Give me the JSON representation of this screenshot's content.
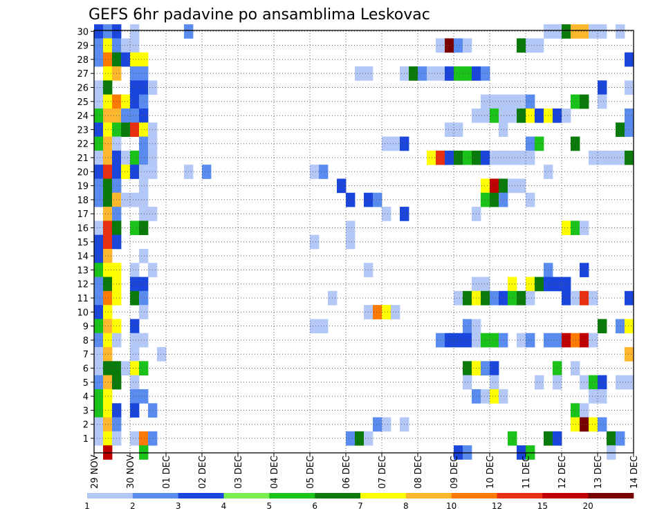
{
  "chart_data": {
    "type": "heatmap",
    "title": "GEFS 6hr padavine po ansamblima Leskovac",
    "xlabel": "",
    "ylabel": "",
    "x_ticks": [
      "29 NOV",
      "30 NOV",
      "01 DEC",
      "02 DEC",
      "03 DEC",
      "04 DEC",
      "05 DEC",
      "06 DEC",
      "07 DEC",
      "08 DEC",
      "09 DEC",
      "10 DEC",
      "11 DEC",
      "12 DEC",
      "13 DEC",
      "14 DEC"
    ],
    "y_ticks": [
      "1",
      "2",
      "3",
      "4",
      "5",
      "6",
      "7",
      "8",
      "9",
      "10",
      "11",
      "12",
      "13",
      "14",
      "15",
      "16",
      "17",
      "18",
      "19",
      "20",
      "21",
      "22",
      "23",
      "24",
      "25",
      "26",
      "27",
      "28",
      "29",
      "30"
    ],
    "x_range_days": [
      0,
      15
    ],
    "steps_per_day": 4,
    "members": 30,
    "grid": "dotted",
    "legend": {
      "placement": "bottom",
      "labels": [
        "1",
        "2",
        "3",
        "4",
        "5",
        "6",
        "7",
        "8",
        "10",
        "12",
        "15",
        "20"
      ],
      "colors": [
        "#b4c8f8",
        "#5a8cf0",
        "#1a46dc",
        "#78ee50",
        "#1ac21a",
        "#0a7a0a",
        "#ffff00",
        "#ffb82e",
        "#ff7a00",
        "#e83010",
        "#c00000",
        "#780000"
      ]
    },
    "fill_values": [
      1.5,
      3,
      3.5,
      4.5,
      5.5,
      6.5,
      7.5,
      9,
      11,
      13.5,
      17.5,
      25
    ],
    "cells": [
      [
        30,
        0,
        "3"
      ],
      [
        30,
        1,
        "2"
      ],
      [
        30,
        2,
        "3"
      ],
      [
        30,
        4,
        "1"
      ],
      [
        30,
        10,
        "2"
      ],
      [
        30,
        50,
        "1"
      ],
      [
        30,
        51,
        "1"
      ],
      [
        30,
        52,
        "6"
      ],
      [
        30,
        53,
        "9"
      ],
      [
        30,
        54,
        "9"
      ],
      [
        30,
        55,
        "1"
      ],
      [
        30,
        56,
        "1"
      ],
      [
        30,
        58,
        "1"
      ],
      [
        29,
        0,
        "2"
      ],
      [
        29,
        1,
        "7"
      ],
      [
        29,
        2,
        "2"
      ],
      [
        29,
        3,
        "1"
      ],
      [
        29,
        4,
        "1"
      ],
      [
        29,
        38,
        "1"
      ],
      [
        29,
        39,
        "25"
      ],
      [
        29,
        40,
        "2"
      ],
      [
        29,
        41,
        "1"
      ],
      [
        29,
        47,
        "6"
      ],
      [
        29,
        48,
        "1"
      ],
      [
        29,
        49,
        "1"
      ],
      [
        28,
        0,
        "2"
      ],
      [
        28,
        1,
        "11"
      ],
      [
        28,
        2,
        "6"
      ],
      [
        28,
        3,
        "3"
      ],
      [
        28,
        4,
        "7"
      ],
      [
        28,
        5,
        "7"
      ],
      [
        28,
        59,
        "3"
      ],
      [
        27,
        1,
        "7"
      ],
      [
        27,
        2,
        "9"
      ],
      [
        27,
        4,
        "2"
      ],
      [
        27,
        5,
        "2"
      ],
      [
        27,
        29,
        "1"
      ],
      [
        27,
        30,
        "1"
      ],
      [
        27,
        34,
        "1"
      ],
      [
        27,
        35,
        "6"
      ],
      [
        27,
        36,
        "2"
      ],
      [
        27,
        37,
        "1"
      ],
      [
        27,
        38,
        "1"
      ],
      [
        27,
        39,
        "3"
      ],
      [
        27,
        40,
        "5"
      ],
      [
        27,
        41,
        "5"
      ],
      [
        27,
        42,
        "3"
      ],
      [
        27,
        43,
        "2"
      ],
      [
        26,
        0,
        "1"
      ],
      [
        26,
        1,
        "6"
      ],
      [
        26,
        4,
        "3"
      ],
      [
        26,
        5,
        "3"
      ],
      [
        26,
        6,
        "1"
      ],
      [
        26,
        56,
        "3"
      ],
      [
        26,
        59,
        "1"
      ],
      [
        25,
        0,
        "1"
      ],
      [
        25,
        1,
        "7"
      ],
      [
        25,
        2,
        "11"
      ],
      [
        25,
        3,
        "7"
      ],
      [
        25,
        4,
        "3"
      ],
      [
        25,
        5,
        "2"
      ],
      [
        25,
        43,
        "1"
      ],
      [
        25,
        44,
        "1"
      ],
      [
        25,
        45,
        "1"
      ],
      [
        25,
        46,
        "1"
      ],
      [
        25,
        47,
        "1"
      ],
      [
        25,
        48,
        "2"
      ],
      [
        25,
        53,
        "5"
      ],
      [
        25,
        54,
        "6"
      ],
      [
        25,
        56,
        "1"
      ],
      [
        24,
        0,
        "5"
      ],
      [
        24,
        1,
        "9"
      ],
      [
        24,
        2,
        "9"
      ],
      [
        24,
        3,
        "2"
      ],
      [
        24,
        4,
        "2"
      ],
      [
        24,
        5,
        "3"
      ],
      [
        24,
        42,
        "1"
      ],
      [
        24,
        43,
        "1"
      ],
      [
        24,
        44,
        "5"
      ],
      [
        24,
        45,
        "1"
      ],
      [
        24,
        46,
        "1"
      ],
      [
        24,
        47,
        "6"
      ],
      [
        24,
        48,
        "7"
      ],
      [
        24,
        49,
        "3"
      ],
      [
        24,
        50,
        "7"
      ],
      [
        24,
        51,
        "3"
      ],
      [
        24,
        52,
        "1"
      ],
      [
        24,
        59,
        "2"
      ],
      [
        23,
        0,
        "3"
      ],
      [
        23,
        1,
        "7"
      ],
      [
        23,
        2,
        "5"
      ],
      [
        23,
        3,
        "6"
      ],
      [
        23,
        4,
        "13"
      ],
      [
        23,
        5,
        "7"
      ],
      [
        23,
        6,
        "1"
      ],
      [
        23,
        39,
        "1"
      ],
      [
        23,
        40,
        "1"
      ],
      [
        23,
        45,
        "1"
      ],
      [
        23,
        58,
        "6"
      ],
      [
        23,
        59,
        "2"
      ],
      [
        22,
        0,
        "5"
      ],
      [
        22,
        1,
        "9"
      ],
      [
        22,
        2,
        "1"
      ],
      [
        22,
        5,
        "2"
      ],
      [
        22,
        6,
        "1"
      ],
      [
        22,
        32,
        "1"
      ],
      [
        22,
        33,
        "1"
      ],
      [
        22,
        34,
        "3"
      ],
      [
        22,
        48,
        "2"
      ],
      [
        22,
        49,
        "5"
      ],
      [
        22,
        53,
        "6"
      ],
      [
        21,
        0,
        "1"
      ],
      [
        21,
        1,
        "9"
      ],
      [
        21,
        2,
        "3"
      ],
      [
        21,
        3,
        "1"
      ],
      [
        21,
        4,
        "5"
      ],
      [
        21,
        5,
        "2"
      ],
      [
        21,
        6,
        "1"
      ],
      [
        21,
        37,
        "7"
      ],
      [
        21,
        38,
        "13"
      ],
      [
        21,
        39,
        "3"
      ],
      [
        21,
        40,
        "6"
      ],
      [
        21,
        41,
        "5"
      ],
      [
        21,
        42,
        "6"
      ],
      [
        21,
        43,
        "3"
      ],
      [
        21,
        44,
        "1"
      ],
      [
        21,
        45,
        "1"
      ],
      [
        21,
        46,
        "1"
      ],
      [
        21,
        47,
        "1"
      ],
      [
        21,
        48,
        "1"
      ],
      [
        21,
        55,
        "1"
      ],
      [
        21,
        56,
        "1"
      ],
      [
        21,
        57,
        "1"
      ],
      [
        21,
        58,
        "1"
      ],
      [
        21,
        59,
        "6"
      ],
      [
        20,
        0,
        "3"
      ],
      [
        20,
        1,
        "13"
      ],
      [
        20,
        2,
        "3"
      ],
      [
        20,
        3,
        "7"
      ],
      [
        20,
        4,
        "3"
      ],
      [
        20,
        5,
        "1"
      ],
      [
        20,
        6,
        "1"
      ],
      [
        20,
        10,
        "1"
      ],
      [
        20,
        12,
        "2"
      ],
      [
        20,
        24,
        "1"
      ],
      [
        20,
        25,
        "2"
      ],
      [
        20,
        50,
        "1"
      ],
      [
        19,
        0,
        "2"
      ],
      [
        19,
        1,
        "6"
      ],
      [
        19,
        2,
        "2"
      ],
      [
        19,
        5,
        "1"
      ],
      [
        19,
        27,
        "3"
      ],
      [
        19,
        43,
        "7"
      ],
      [
        19,
        44,
        "17"
      ],
      [
        19,
        45,
        "6"
      ],
      [
        19,
        46,
        "1"
      ],
      [
        19,
        47,
        "1"
      ],
      [
        18,
        0,
        "2"
      ],
      [
        18,
        1,
        "6"
      ],
      [
        18,
        2,
        "9"
      ],
      [
        18,
        3,
        "1"
      ],
      [
        18,
        4,
        "1"
      ],
      [
        18,
        5,
        "1"
      ],
      [
        18,
        28,
        "3"
      ],
      [
        18,
        30,
        "3"
      ],
      [
        18,
        31,
        "2"
      ],
      [
        18,
        43,
        "5"
      ],
      [
        18,
        44,
        "6"
      ],
      [
        18,
        45,
        "2"
      ],
      [
        18,
        48,
        "1"
      ],
      [
        17,
        1,
        "9"
      ],
      [
        17,
        2,
        "2"
      ],
      [
        17,
        5,
        "1"
      ],
      [
        17,
        6,
        "1"
      ],
      [
        17,
        32,
        "1"
      ],
      [
        17,
        34,
        "3"
      ],
      [
        17,
        42,
        "1"
      ],
      [
        16,
        0,
        "1"
      ],
      [
        16,
        1,
        "13"
      ],
      [
        16,
        2,
        "6"
      ],
      [
        16,
        4,
        "5"
      ],
      [
        16,
        5,
        "6"
      ],
      [
        16,
        28,
        "1"
      ],
      [
        16,
        52,
        "7"
      ],
      [
        16,
        53,
        "5"
      ],
      [
        16,
        54,
        "1"
      ],
      [
        15,
        0,
        "3"
      ],
      [
        15,
        1,
        "13"
      ],
      [
        15,
        2,
        "3"
      ],
      [
        15,
        24,
        "1"
      ],
      [
        15,
        28,
        "1"
      ],
      [
        14,
        0,
        "3"
      ],
      [
        14,
        1,
        "9"
      ],
      [
        14,
        5,
        "1"
      ],
      [
        13,
        0,
        "5"
      ],
      [
        13,
        1,
        "7"
      ],
      [
        13,
        2,
        "7"
      ],
      [
        13,
        4,
        "1"
      ],
      [
        13,
        6,
        "1"
      ],
      [
        13,
        30,
        "1"
      ],
      [
        13,
        50,
        "2"
      ],
      [
        13,
        54,
        "3"
      ],
      [
        12,
        0,
        "2"
      ],
      [
        12,
        1,
        "6"
      ],
      [
        12,
        2,
        "7"
      ],
      [
        12,
        4,
        "3"
      ],
      [
        12,
        5,
        "3"
      ],
      [
        12,
        42,
        "1"
      ],
      [
        12,
        43,
        "1"
      ],
      [
        12,
        46,
        "7"
      ],
      [
        12,
        48,
        "7"
      ],
      [
        12,
        49,
        "6"
      ],
      [
        12,
        50,
        "3"
      ],
      [
        12,
        51,
        "3"
      ],
      [
        12,
        52,
        "3"
      ],
      [
        11,
        0,
        "2"
      ],
      [
        11,
        1,
        "11"
      ],
      [
        11,
        2,
        "7"
      ],
      [
        11,
        4,
        "6"
      ],
      [
        11,
        5,
        "2"
      ],
      [
        11,
        26,
        "1"
      ],
      [
        11,
        40,
        "1"
      ],
      [
        11,
        41,
        "6"
      ],
      [
        11,
        42,
        "7"
      ],
      [
        11,
        43,
        "6"
      ],
      [
        11,
        44,
        "2"
      ],
      [
        11,
        45,
        "3"
      ],
      [
        11,
        46,
        "5"
      ],
      [
        11,
        47,
        "6"
      ],
      [
        11,
        48,
        "1"
      ],
      [
        11,
        52,
        "3"
      ],
      [
        11,
        53,
        "1"
      ],
      [
        11,
        54,
        "13"
      ],
      [
        11,
        55,
        "1"
      ],
      [
        11,
        59,
        "3"
      ],
      [
        10,
        0,
        "3"
      ],
      [
        10,
        1,
        "7"
      ],
      [
        10,
        5,
        "1"
      ],
      [
        10,
        30,
        "1"
      ],
      [
        10,
        31,
        "11"
      ],
      [
        10,
        32,
        "7"
      ],
      [
        10,
        33,
        "1"
      ],
      [
        9,
        0,
        "5"
      ],
      [
        9,
        1,
        "9"
      ],
      [
        9,
        2,
        "7"
      ],
      [
        9,
        4,
        "3"
      ],
      [
        9,
        24,
        "1"
      ],
      [
        9,
        25,
        "1"
      ],
      [
        9,
        41,
        "2"
      ],
      [
        9,
        42,
        "1"
      ],
      [
        9,
        56,
        "6"
      ],
      [
        9,
        58,
        "2"
      ],
      [
        9,
        59,
        "7"
      ],
      [
        8,
        0,
        "2"
      ],
      [
        8,
        1,
        "7"
      ],
      [
        8,
        2,
        "1"
      ],
      [
        8,
        4,
        "1"
      ],
      [
        8,
        5,
        "1"
      ],
      [
        8,
        38,
        "2"
      ],
      [
        8,
        39,
        "3"
      ],
      [
        8,
        40,
        "3"
      ],
      [
        8,
        41,
        "3"
      ],
      [
        8,
        42,
        "1"
      ],
      [
        8,
        43,
        "5"
      ],
      [
        8,
        44,
        "5"
      ],
      [
        8,
        45,
        "2"
      ],
      [
        8,
        47,
        "1"
      ],
      [
        8,
        48,
        "2"
      ],
      [
        8,
        50,
        "2"
      ],
      [
        8,
        51,
        "2"
      ],
      [
        8,
        52,
        "17"
      ],
      [
        8,
        53,
        "11"
      ],
      [
        8,
        54,
        "17"
      ],
      [
        8,
        55,
        "1"
      ],
      [
        7,
        0,
        "1"
      ],
      [
        7,
        1,
        "9"
      ],
      [
        7,
        4,
        "1"
      ],
      [
        7,
        7,
        "1"
      ],
      [
        7,
        59,
        "9"
      ],
      [
        6,
        0,
        "1"
      ],
      [
        6,
        1,
        "6"
      ],
      [
        6,
        2,
        "6"
      ],
      [
        6,
        3,
        "1"
      ],
      [
        6,
        4,
        "7"
      ],
      [
        6,
        5,
        "5"
      ],
      [
        6,
        41,
        "6"
      ],
      [
        6,
        42,
        "7"
      ],
      [
        6,
        43,
        "2"
      ],
      [
        6,
        44,
        "3"
      ],
      [
        6,
        51,
        "5"
      ],
      [
        6,
        53,
        "1"
      ],
      [
        5,
        0,
        "2"
      ],
      [
        5,
        1,
        "9"
      ],
      [
        5,
        2,
        "6"
      ],
      [
        5,
        4,
        "1"
      ],
      [
        5,
        41,
        "1"
      ],
      [
        5,
        44,
        "1"
      ],
      [
        5,
        49,
        "1"
      ],
      [
        5,
        51,
        "1"
      ],
      [
        5,
        54,
        "1"
      ],
      [
        5,
        55,
        "5"
      ],
      [
        5,
        56,
        "3"
      ],
      [
        5,
        58,
        "1"
      ],
      [
        5,
        59,
        "1"
      ],
      [
        4,
        0,
        "5"
      ],
      [
        4,
        1,
        "7"
      ],
      [
        4,
        4,
        "2"
      ],
      [
        4,
        5,
        "2"
      ],
      [
        4,
        42,
        "2"
      ],
      [
        4,
        43,
        "1"
      ],
      [
        4,
        44,
        "7"
      ],
      [
        4,
        45,
        "1"
      ],
      [
        4,
        55,
        "1"
      ],
      [
        4,
        56,
        "1"
      ],
      [
        3,
        0,
        "5"
      ],
      [
        3,
        1,
        "7"
      ],
      [
        3,
        2,
        "3"
      ],
      [
        3,
        4,
        "3"
      ],
      [
        3,
        6,
        "2"
      ],
      [
        3,
        53,
        "5"
      ],
      [
        3,
        54,
        "1"
      ],
      [
        2,
        0,
        "1"
      ],
      [
        2,
        1,
        "9"
      ],
      [
        2,
        2,
        "2"
      ],
      [
        2,
        31,
        "2"
      ],
      [
        2,
        32,
        "1"
      ],
      [
        2,
        34,
        "1"
      ],
      [
        2,
        53,
        "7"
      ],
      [
        2,
        54,
        "25"
      ],
      [
        2,
        55,
        "7"
      ],
      [
        2,
        56,
        "2"
      ],
      [
        1,
        0,
        "1"
      ],
      [
        1,
        1,
        "7"
      ],
      [
        1,
        2,
        "1"
      ],
      [
        1,
        4,
        "1"
      ],
      [
        1,
        5,
        "11"
      ],
      [
        1,
        6,
        "2"
      ],
      [
        1,
        28,
        "2"
      ],
      [
        1,
        29,
        "6"
      ],
      [
        1,
        30,
        "1"
      ],
      [
        1,
        46,
        "5"
      ],
      [
        1,
        50,
        "6"
      ],
      [
        1,
        51,
        "3"
      ],
      [
        1,
        57,
        "6"
      ],
      [
        1,
        58,
        "2"
      ],
      [
        0,
        1,
        "17"
      ],
      [
        0,
        5,
        "5"
      ],
      [
        0,
        40,
        "3"
      ],
      [
        0,
        41,
        "2"
      ],
      [
        0,
        47,
        "3"
      ],
      [
        0,
        48,
        "5"
      ],
      [
        0,
        57,
        "1"
      ]
    ]
  }
}
